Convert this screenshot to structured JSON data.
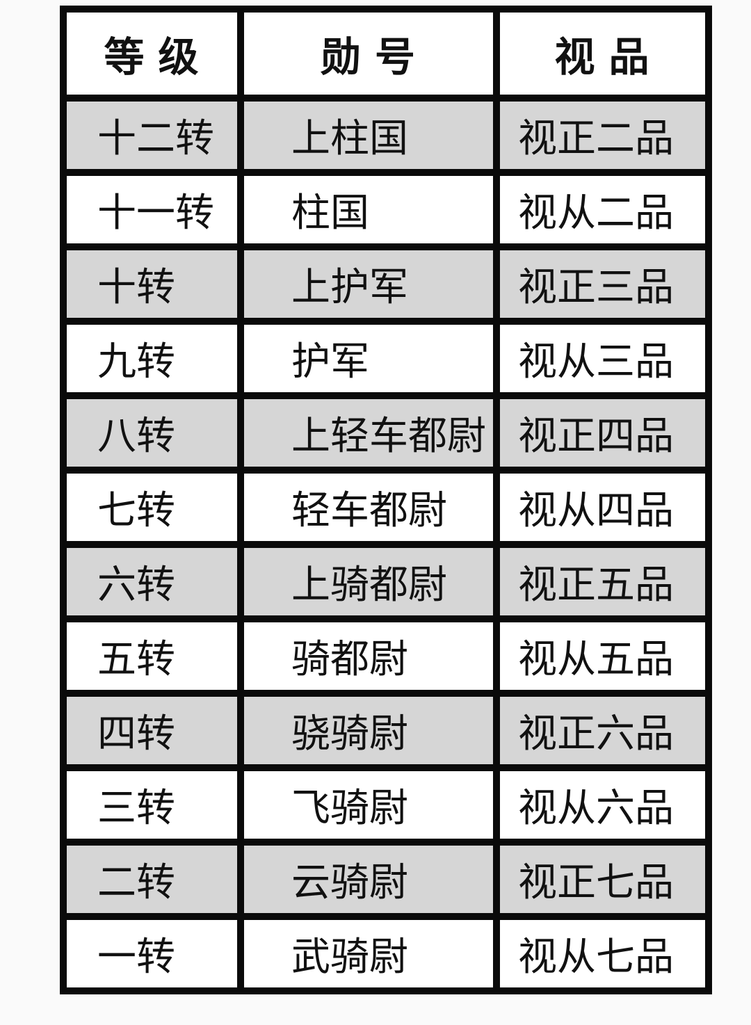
{
  "colors": {
    "page_background": "#fafafa",
    "cell_background": "#ffffff",
    "alt_row_background": "#d6d6d6",
    "border": "#0a0a0a",
    "text": "#111111"
  },
  "chart_data": {
    "type": "table",
    "columns": [
      "等 级",
      "勋 号",
      "视 品"
    ],
    "rows": [
      [
        "十二转",
        "上柱国",
        "视正二品"
      ],
      [
        "十一转",
        "柱国",
        "视从二品"
      ],
      [
        "十转",
        "上护军",
        "视正三品"
      ],
      [
        "九转",
        "护军",
        "视从三品"
      ],
      [
        "八转",
        "上轻车都尉",
        "视正四品"
      ],
      [
        "七转",
        "轻车都尉",
        "视从四品"
      ],
      [
        "六转",
        "上骑都尉",
        "视正五品"
      ],
      [
        "五转",
        "骑都尉",
        "视从五品"
      ],
      [
        "四转",
        "骁骑尉",
        "视正六品"
      ],
      [
        "三转",
        "飞骑尉",
        "视从六品"
      ],
      [
        "二转",
        "云骑尉",
        "视正七品"
      ],
      [
        "一转",
        "武骑尉",
        "视从七品"
      ]
    ],
    "layout": {
      "grid": "thick black borders on every cell",
      "row_striping": "data rows alternate gray then white, starting gray",
      "header_alignment": "center",
      "body_alignment": "left"
    }
  }
}
